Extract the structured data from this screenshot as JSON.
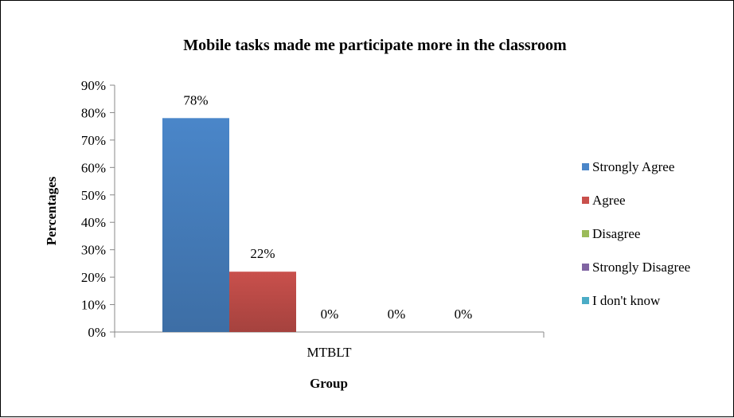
{
  "chart_data": {
    "type": "bar",
    "title": "Mobile tasks made me participate more in the classroom",
    "xlabel": "Group",
    "ylabel": "Percentages",
    "categories": [
      "MTBLT"
    ],
    "ylim": [
      0,
      90
    ],
    "y_tick_step": 10,
    "y_tick_suffix": "%",
    "grid": false,
    "legend_position": "right",
    "series": [
      {
        "name": "Strongly Agree",
        "values": [
          78
        ],
        "label": "78%",
        "color": "#4a86c9"
      },
      {
        "name": "Agree",
        "values": [
          22
        ],
        "label": "22%",
        "color": "#c9504c"
      },
      {
        "name": "Disagree",
        "values": [
          0
        ],
        "label": "0%",
        "color": "#9bbb59"
      },
      {
        "name": "Strongly Disagree",
        "values": [
          0
        ],
        "label": "0%",
        "color": "#8064a2"
      },
      {
        "name": "I don't know",
        "values": [
          0
        ],
        "label": "0%",
        "color": "#4bacc6"
      }
    ]
  }
}
